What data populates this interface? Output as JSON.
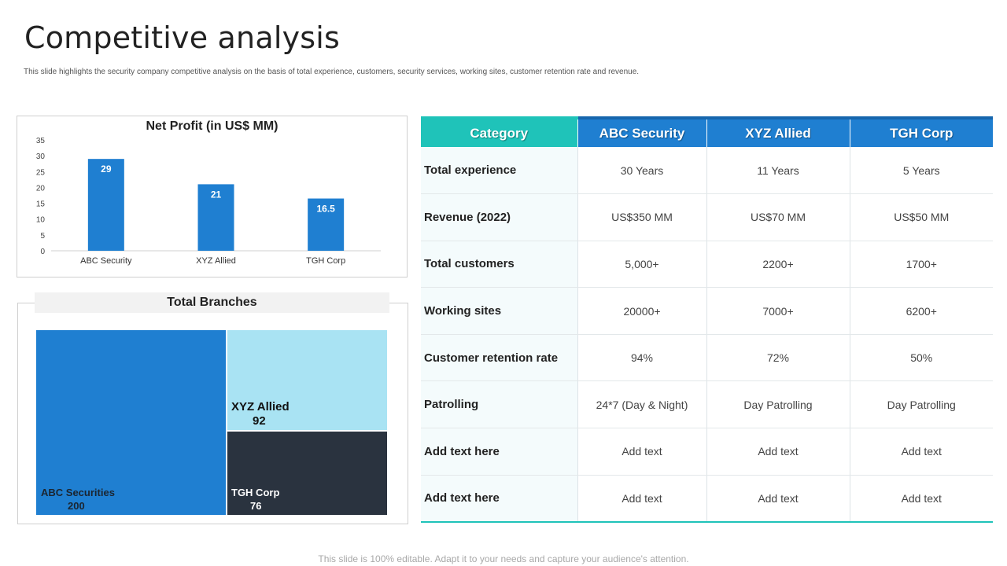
{
  "page": {
    "title": "Competitive analysis",
    "subtitle": "This slide highlights the security company competitive analysis on the basis of total experience, customers, security services, working sites, customer retention rate and revenue.",
    "footer": "This slide is 100% editable. Adapt it to your needs and capture your audience's attention."
  },
  "colors": {
    "bar_blue": "#1f7fd1",
    "teal": "#1fc3b9",
    "light_blue": "#a9e3f3",
    "dark_navy": "#2a333f"
  },
  "chart_data": [
    {
      "type": "bar",
      "title": "Net Profit (in US$ MM)",
      "categories": [
        "ABC Security",
        "XYZ Allied",
        "TGH Corp"
      ],
      "values": [
        29,
        21,
        16.5
      ],
      "value_labels": [
        "29",
        "21",
        "16.5"
      ],
      "ylim": [
        0,
        35
      ],
      "yticks": [
        0,
        5,
        10,
        15,
        20,
        25,
        30,
        35
      ],
      "xlabel": "",
      "ylabel": "",
      "grid": false
    },
    {
      "type": "treemap",
      "title": "Total Branches",
      "items": [
        {
          "name": "ABC Securities",
          "value": 200,
          "value_label": "200"
        },
        {
          "name": "XYZ Allied",
          "value": 92,
          "value_label": "92"
        },
        {
          "name": "TGH Corp",
          "value": 76,
          "value_label": "76"
        }
      ]
    }
  ],
  "table": {
    "headers": [
      "Category",
      "ABC Security",
      "XYZ Allied",
      "TGH Corp"
    ],
    "rows": [
      {
        "label": "Total experience",
        "values": [
          "30 Years",
          "11 Years",
          "5 Years"
        ]
      },
      {
        "label": "Revenue (2022)",
        "values": [
          "US$350 MM",
          "US$70 MM",
          "US$50 MM"
        ]
      },
      {
        "label": "Total customers",
        "values": [
          "5,000+",
          "2200+",
          "1700+"
        ]
      },
      {
        "label": "Working sites",
        "values": [
          "20000+",
          "7000+",
          "6200+"
        ]
      },
      {
        "label": "Customer retention rate",
        "values": [
          "94%",
          "72%",
          "50%"
        ]
      },
      {
        "label": "Patrolling",
        "values": [
          "24*7 (Day & Night)",
          "Day Patrolling",
          "Day Patrolling"
        ]
      },
      {
        "label": "Add text here",
        "values": [
          "Add text",
          "Add text",
          "Add text"
        ]
      },
      {
        "label": "Add text here",
        "values": [
          "Add text",
          "Add text",
          "Add text"
        ]
      }
    ]
  }
}
